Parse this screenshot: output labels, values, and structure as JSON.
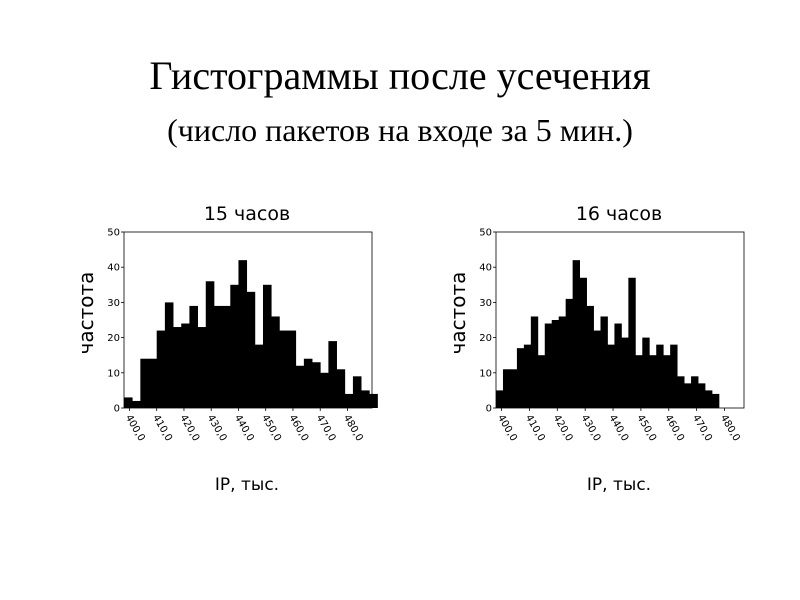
{
  "title": "Гистограммы после усечения",
  "subtitle": "(число пакетов на входе за 5 мин.)",
  "chart_data": [
    {
      "type": "bar",
      "title": "15 часов",
      "xlabel": "IP, тыс.",
      "ylabel": "частота",
      "ylim": [
        0,
        50
      ],
      "y_ticks": [
        "0",
        "10",
        "20",
        "30",
        "40",
        "50"
      ],
      "x_ticks": [
        "400,0",
        "410,0",
        "420,0",
        "430,0",
        "440,0",
        "450,0",
        "460,0",
        "470,0",
        "480,0"
      ],
      "x_range": [
        398,
        489
      ],
      "bin_width": 3,
      "bin_start": 398,
      "values": [
        3,
        2,
        14,
        14,
        22,
        30,
        23,
        24,
        29,
        23,
        36,
        29,
        29,
        35,
        42,
        33,
        18,
        35,
        26,
        22,
        22,
        12,
        14,
        13,
        10,
        19,
        11,
        4,
        9,
        5,
        4
      ],
      "grid": false
    },
    {
      "type": "bar",
      "title": "16 часов",
      "xlabel": "IP, тыс.",
      "ylabel": "частота",
      "ylim": [
        0,
        50
      ],
      "y_ticks": [
        "0",
        "10",
        "20",
        "30",
        "40",
        "50"
      ],
      "x_ticks": [
        "400,0",
        "410,0",
        "420,0",
        "430,0",
        "440,0",
        "450,0",
        "460,0",
        "470,0",
        "480,0"
      ],
      "x_range": [
        398,
        487
      ],
      "bin_width": 2.5,
      "bin_start": 398,
      "values": [
        5,
        11,
        11,
        17,
        18,
        26,
        15,
        24,
        25,
        26,
        31,
        42,
        37,
        29,
        22,
        26,
        18,
        24,
        20,
        37,
        15,
        20,
        15,
        18,
        15,
        18,
        9,
        7,
        9,
        7,
        5,
        4
      ],
      "grid": false
    }
  ]
}
